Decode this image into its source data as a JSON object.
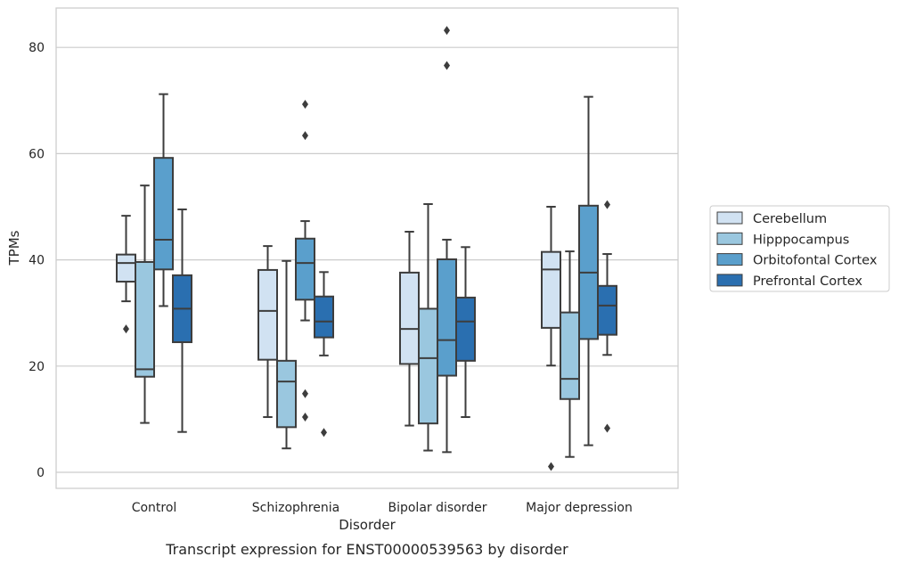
{
  "chart_data": {
    "type": "box",
    "title": "",
    "caption": "Transcript expression for ENST00000539563 by disorder",
    "xlabel": "Disorder",
    "ylabel": "TPMs",
    "ylim": [
      -3,
      87.5
    ],
    "yticks": [
      0,
      20,
      40,
      60,
      80
    ],
    "ytick_labels": [
      "0",
      "20",
      "40",
      "60",
      "80"
    ],
    "grid": "horizontal",
    "legend_position": "right",
    "categories": [
      "Control",
      "Schizophrenia",
      "Bipolar disorder",
      "Major depression"
    ],
    "series": [
      {
        "name": "Cerebellum",
        "color": "#d1e2f2",
        "boxes": [
          {
            "whisker_low": 32.2,
            "q1": 35.9,
            "median": 39.4,
            "q3": 41.0,
            "whisker_high": 48.3,
            "outliers": [
              27.0
            ]
          },
          {
            "whisker_low": 10.4,
            "q1": 21.2,
            "median": 30.4,
            "q3": 38.1,
            "whisker_high": 42.6,
            "outliers": []
          },
          {
            "whisker_low": 8.8,
            "q1": 20.4,
            "median": 27.0,
            "q3": 37.6,
            "whisker_high": 45.3,
            "outliers": []
          },
          {
            "whisker_low": 20.1,
            "q1": 27.2,
            "median": 38.2,
            "q3": 41.5,
            "whisker_high": 50.0,
            "outliers": [
              1.1
            ]
          }
        ]
      },
      {
        "name": "Hipppocampus",
        "color": "#9ac7df",
        "boxes": [
          {
            "whisker_low": 9.3,
            "q1": 18.0,
            "median": 19.4,
            "q3": 39.6,
            "whisker_high": 54.0,
            "outliers": []
          },
          {
            "whisker_low": 4.5,
            "q1": 8.5,
            "median": 17.1,
            "q3": 21.0,
            "whisker_high": 39.8,
            "outliers": []
          },
          {
            "whisker_low": 4.1,
            "q1": 9.2,
            "median": 21.5,
            "q3": 30.8,
            "whisker_high": 50.5,
            "outliers": []
          },
          {
            "whisker_low": 2.9,
            "q1": 13.8,
            "median": 17.6,
            "q3": 30.1,
            "whisker_high": 41.6,
            "outliers": []
          }
        ]
      },
      {
        "name": "Orbitofontal Cortex",
        "color": "#5a9fcc",
        "boxes": [
          {
            "whisker_low": 31.3,
            "q1": 38.2,
            "median": 43.8,
            "q3": 59.2,
            "whisker_high": 71.2,
            "outliers": []
          },
          {
            "whisker_low": 28.6,
            "q1": 32.5,
            "median": 39.4,
            "q3": 44.0,
            "whisker_high": 47.3,
            "outliers": [
              69.3,
              63.4,
              14.8,
              10.4
            ]
          },
          {
            "whisker_low": 3.8,
            "q1": 18.2,
            "median": 24.9,
            "q3": 40.1,
            "whisker_high": 43.8,
            "outliers": [
              83.2,
              76.6
            ]
          },
          {
            "whisker_low": 5.1,
            "q1": 25.1,
            "median": 37.6,
            "q3": 50.2,
            "whisker_high": 70.7,
            "outliers": []
          }
        ]
      },
      {
        "name": "Prefrontal Cortex",
        "color": "#2a6fb0",
        "boxes": [
          {
            "whisker_low": 7.6,
            "q1": 24.5,
            "median": 30.8,
            "q3": 37.1,
            "whisker_high": 49.5,
            "outliers": []
          },
          {
            "whisker_low": 22.0,
            "q1": 25.4,
            "median": 28.4,
            "q3": 33.1,
            "whisker_high": 37.7,
            "outliers": [
              7.5
            ]
          },
          {
            "whisker_low": 10.4,
            "q1": 21.0,
            "median": 28.4,
            "q3": 32.9,
            "whisker_high": 42.4,
            "outliers": []
          },
          {
            "whisker_low": 22.1,
            "q1": 25.9,
            "median": 31.4,
            "q3": 35.1,
            "whisker_high": 41.1,
            "outliers": [
              50.4,
              8.3
            ]
          }
        ]
      }
    ]
  }
}
